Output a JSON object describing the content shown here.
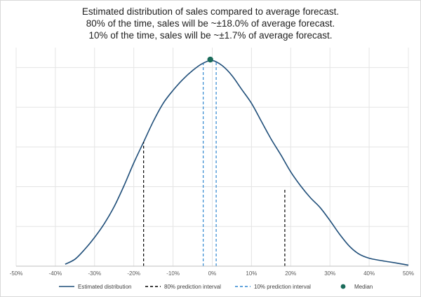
{
  "chart_data": {
    "type": "line",
    "title_lines": [
      "Estimated distribution of sales compared to average forecast.",
      "80% of the time, sales will be ~±18.0% of average forecast.",
      "10% of the time, sales will be ~±1.7% of average forecast."
    ],
    "xlim": [
      -50,
      50
    ],
    "ylim": [
      0,
      1.1
    ],
    "x_ticks": [
      -50,
      -40,
      -30,
      -20,
      -10,
      0,
      10,
      20,
      30,
      40,
      50
    ],
    "x_tick_labels": [
      "-50%",
      "-40%",
      "-30%",
      "-20%",
      "-10%",
      "0%",
      "10%",
      "20%",
      "30%",
      "40%",
      "50%"
    ],
    "y_gridlines": [
      0.2,
      0.4,
      0.6,
      0.8,
      1.0
    ],
    "y_tick_labels_shown": false,
    "grid": true,
    "legend_position": "bottom",
    "series": [
      {
        "name": "Estimated distribution",
        "kind": "line",
        "color": "#1f4e79",
        "points": [
          [
            -37.5,
            0.01
          ],
          [
            -35,
            0.035
          ],
          [
            -32.5,
            0.085
          ],
          [
            -30,
            0.145
          ],
          [
            -27.5,
            0.215
          ],
          [
            -25,
            0.3
          ],
          [
            -22.5,
            0.405
          ],
          [
            -20,
            0.52
          ],
          [
            -17.5,
            0.625
          ],
          [
            -15,
            0.73
          ],
          [
            -12.5,
            0.82
          ],
          [
            -10,
            0.885
          ],
          [
            -7.5,
            0.94
          ],
          [
            -5,
            0.985
          ],
          [
            -2.5,
            1.02
          ],
          [
            0,
            1.035
          ],
          [
            2.5,
            1.01
          ],
          [
            5,
            0.96
          ],
          [
            7.5,
            0.89
          ],
          [
            10,
            0.82
          ],
          [
            12.5,
            0.73
          ],
          [
            15,
            0.64
          ],
          [
            17.5,
            0.56
          ],
          [
            20,
            0.475
          ],
          [
            22.5,
            0.405
          ],
          [
            25,
            0.345
          ],
          [
            27.5,
            0.295
          ],
          [
            30,
            0.23
          ],
          [
            32.5,
            0.16
          ],
          [
            35,
            0.1
          ],
          [
            37.5,
            0.06
          ],
          [
            40,
            0.04
          ],
          [
            42.5,
            0.03
          ],
          [
            45,
            0.022
          ],
          [
            47.5,
            0.014
          ],
          [
            50,
            0.005
          ]
        ]
      },
      {
        "name": "80% prediction interval",
        "kind": "vlines",
        "color": "#000000",
        "dash": "4,3",
        "lines": [
          [
            -17.5,
            0.625
          ],
          [
            18.5,
            0.39
          ]
        ]
      },
      {
        "name": "10% prediction interval",
        "kind": "vlines",
        "color": "#2e86d0",
        "dash": "4,3",
        "lines": [
          [
            -2.3,
            1.02
          ],
          [
            1.0,
            1.03
          ]
        ]
      },
      {
        "name": "Median",
        "kind": "point",
        "color": "#1a6b5a",
        "points": [
          [
            -0.5,
            1.04
          ]
        ]
      }
    ]
  }
}
